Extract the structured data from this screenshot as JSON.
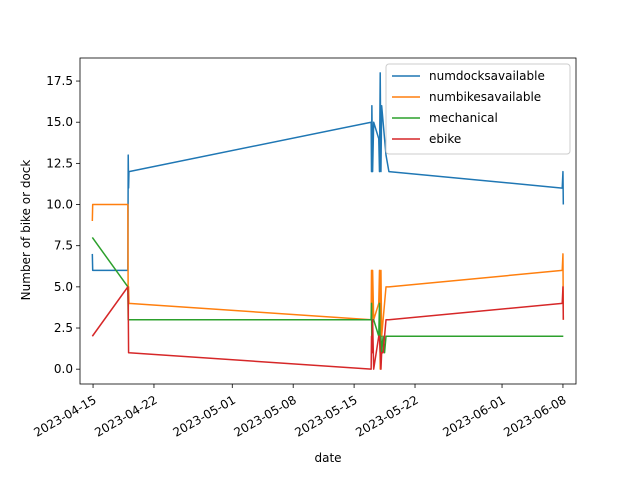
{
  "chart_data": {
    "type": "line",
    "title": "",
    "xlabel": "date",
    "ylabel": "Number of bike or dock",
    "x_axis_type": "date",
    "xlim": [
      "2023-04-13T12:00",
      "2023-06-09T12:00"
    ],
    "ylim": [
      -0.9,
      18.9
    ],
    "xticks": [
      "2023-04-15",
      "2023-04-22",
      "2023-05-01",
      "2023-05-08",
      "2023-05-15",
      "2023-05-22",
      "2023-06-01",
      "2023-06-08"
    ],
    "yticks": [
      0.0,
      2.5,
      5.0,
      7.5,
      10.0,
      12.5,
      15.0,
      17.5
    ],
    "ytick_labels": [
      "0.0",
      "2.5",
      "5.0",
      "7.5",
      "10.0",
      "12.5",
      "15.0",
      "17.5"
    ],
    "grid": false,
    "legend": "top-right",
    "series": [
      {
        "name": "numdocksavailable",
        "color": "#1f77b4",
        "points": [
          [
            "2023-04-14T22:00",
            7.0
          ],
          [
            "2023-04-14T23:00",
            6.0
          ],
          [
            "2023-04-19T00:00",
            6.0
          ],
          [
            "2023-04-19T01:00",
            13.0
          ],
          [
            "2023-04-19T02:00",
            11.0
          ],
          [
            "2023-04-19T03:00",
            12.0
          ],
          [
            "2023-05-16T23:00",
            15.0
          ],
          [
            "2023-05-17T00:00",
            12.0
          ],
          [
            "2023-05-17T01:00",
            16.0
          ],
          [
            "2023-05-17T03:00",
            12.0
          ],
          [
            "2023-05-17T06:00",
            15.0
          ],
          [
            "2023-05-17T20:00",
            14.0
          ],
          [
            "2023-05-17T22:00",
            12.0
          ],
          [
            "2023-05-18T00:00",
            18.0
          ],
          [
            "2023-05-18T02:00",
            12.0
          ],
          [
            "2023-05-18T04:00",
            16.0
          ],
          [
            "2023-05-18T08:00",
            15.0
          ],
          [
            "2023-05-18T12:00",
            14.0
          ],
          [
            "2023-05-18T16:00",
            13.0
          ],
          [
            "2023-05-19T00:00",
            12.0
          ],
          [
            "2023-06-07T22:00",
            11.0
          ],
          [
            "2023-06-08T00:00",
            12.0
          ],
          [
            "2023-06-08T01:00",
            10.0
          ]
        ]
      },
      {
        "name": "numbikesavailable",
        "color": "#ff7f0e",
        "points": [
          [
            "2023-04-14T22:00",
            9.0
          ],
          [
            "2023-04-14T23:00",
            10.0
          ],
          [
            "2023-04-19T00:00",
            10.0
          ],
          [
            "2023-04-19T01:00",
            3.0
          ],
          [
            "2023-04-19T02:00",
            5.0
          ],
          [
            "2023-04-19T03:00",
            4.0
          ],
          [
            "2023-05-16T23:00",
            3.0
          ],
          [
            "2023-05-17T00:00",
            6.0
          ],
          [
            "2023-05-17T01:00",
            2.0
          ],
          [
            "2023-05-17T03:00",
            6.0
          ],
          [
            "2023-05-17T06:00",
            3.0
          ],
          [
            "2023-05-17T20:00",
            4.0
          ],
          [
            "2023-05-17T22:00",
            6.0
          ],
          [
            "2023-05-18T00:00",
            0.0
          ],
          [
            "2023-05-18T02:00",
            6.0
          ],
          [
            "2023-05-18T04:00",
            2.0
          ],
          [
            "2023-05-18T08:00",
            3.0
          ],
          [
            "2023-05-18T12:00",
            4.0
          ],
          [
            "2023-05-18T16:00",
            5.0
          ],
          [
            "2023-05-19T00:00",
            5.0
          ],
          [
            "2023-06-07T22:00",
            6.0
          ],
          [
            "2023-06-08T00:00",
            7.0
          ],
          [
            "2023-06-08T01:00",
            3.0
          ]
        ]
      },
      {
        "name": "mechanical",
        "color": "#2ca02c",
        "points": [
          [
            "2023-04-14T22:00",
            8.0
          ],
          [
            "2023-04-19T00:00",
            5.0
          ],
          [
            "2023-04-19T01:00",
            3.0
          ],
          [
            "2023-04-19T02:00",
            3.0
          ],
          [
            "2023-04-19T03:00",
            3.0
          ],
          [
            "2023-05-16T23:00",
            3.0
          ],
          [
            "2023-05-17T00:00",
            4.0
          ],
          [
            "2023-05-17T01:00",
            1.0
          ],
          [
            "2023-05-17T03:00",
            3.0
          ],
          [
            "2023-05-17T06:00",
            3.0
          ],
          [
            "2023-05-17T20:00",
            2.0
          ],
          [
            "2023-05-17T22:00",
            4.0
          ],
          [
            "2023-05-18T00:00",
            1.0
          ],
          [
            "2023-05-18T02:00",
            2.0
          ],
          [
            "2023-05-18T04:00",
            1.0
          ],
          [
            "2023-05-18T08:00",
            2.0
          ],
          [
            "2023-05-18T12:00",
            1.0
          ],
          [
            "2023-05-18T16:00",
            2.0
          ],
          [
            "2023-05-19T00:00",
            2.0
          ],
          [
            "2023-06-07T22:00",
            2.0
          ],
          [
            "2023-06-08T00:00",
            2.0
          ],
          [
            "2023-06-08T01:00",
            2.0
          ]
        ]
      },
      {
        "name": "ebike",
        "color": "#d62728",
        "points": [
          [
            "2023-04-14T22:00",
            2.0
          ],
          [
            "2023-04-19T00:00",
            5.0
          ],
          [
            "2023-04-19T01:00",
            4.0
          ],
          [
            "2023-04-19T02:00",
            1.0
          ],
          [
            "2023-04-19T03:00",
            1.0
          ],
          [
            "2023-05-16T23:00",
            0.0
          ],
          [
            "2023-05-17T00:00",
            2.0
          ],
          [
            "2023-05-17T01:00",
            1.0
          ],
          [
            "2023-05-17T03:00",
            3.0
          ],
          [
            "2023-05-17T06:00",
            0.0
          ],
          [
            "2023-05-17T20:00",
            2.0
          ],
          [
            "2023-05-17T22:00",
            2.0
          ],
          [
            "2023-05-18T00:00",
            1.0
          ],
          [
            "2023-05-18T02:00",
            0.0
          ],
          [
            "2023-05-18T04:00",
            1.0
          ],
          [
            "2023-05-18T08:00",
            1.0
          ],
          [
            "2023-05-18T12:00",
            2.0
          ],
          [
            "2023-05-18T16:00",
            3.0
          ],
          [
            "2023-05-19T00:00",
            3.0
          ],
          [
            "2023-06-07T22:00",
            4.0
          ],
          [
            "2023-06-08T00:00",
            5.0
          ],
          [
            "2023-06-08T01:00",
            3.0
          ]
        ]
      }
    ]
  }
}
